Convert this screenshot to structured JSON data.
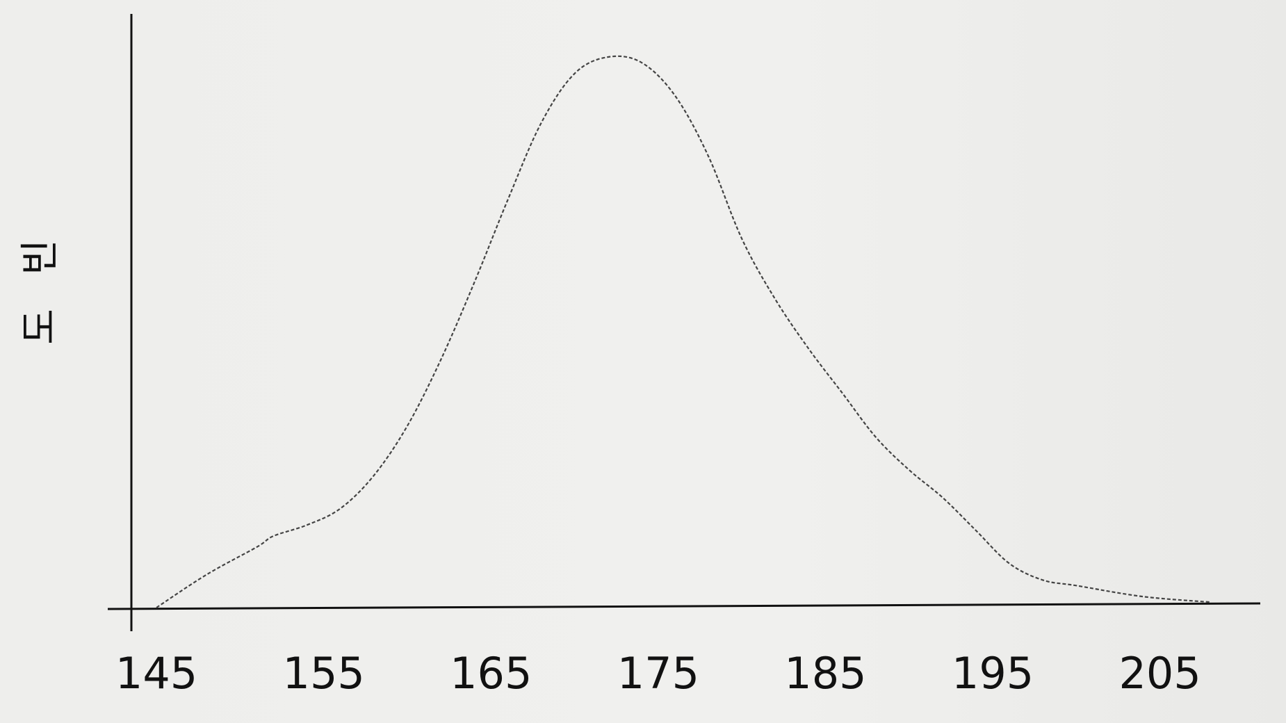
{
  "chart_data": {
    "type": "line",
    "title": "",
    "xlabel": "",
    "ylabel": "빈도",
    "x_ticks": [
      "145",
      "155",
      "165",
      "175",
      "185",
      "195",
      "205"
    ],
    "xlim": [
      143.5,
      211
    ],
    "ylim": [
      0,
      100
    ],
    "grid": false,
    "legend": "none",
    "series": [
      {
        "x": [
          145,
          148,
          151,
          152,
          154,
          156,
          158,
          160,
          162,
          164,
          166,
          168,
          170,
          172,
          174,
          176,
          178,
          180,
          182,
          184,
          186,
          188,
          190,
          192,
          194,
          196,
          198,
          200,
          204,
          208
        ],
        "y": [
          0,
          6,
          11,
          13,
          15,
          18,
          24,
          33,
          45,
          59,
          74,
          88,
          97,
          100,
          99,
          93,
          82,
          67,
          56,
          47,
          39,
          31,
          25,
          20,
          14,
          8,
          5,
          4,
          2,
          1
        ],
        "style": "dotted",
        "color": "#444444"
      }
    ]
  }
}
